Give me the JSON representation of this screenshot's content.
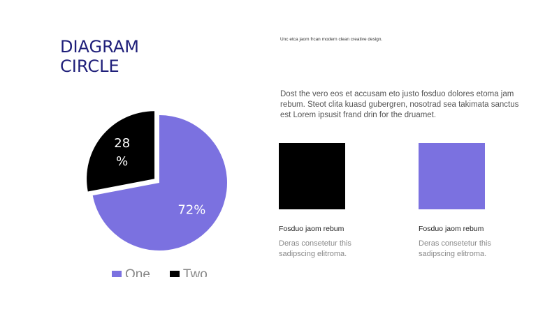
{
  "title_line1": "DIAGRAM",
  "title_line2": "CIRCLE",
  "tagline": "Unc etca jaom frcan modern clean creative design.",
  "body_text": "Dost the vero eos et accusam eto justo fosduo dolores etoma jam rebum. Steot clita kuasd gubergren, nosotrad sea takimata sanctus est Lorem ipsusit frand drin for the druamet.",
  "cards": [
    {
      "title": "Fosduo jaom rebum",
      "text": "Deras consetetur this sadipscing elitroma.",
      "color": "#000000"
    },
    {
      "title": "Fosduo jaom rebum",
      "text": "Deras consetetur this sadipscing elitroma.",
      "color": "#7b71e0"
    }
  ],
  "chart_data": {
    "type": "pie",
    "categories": [
      "One",
      "Two"
    ],
    "values": [
      72,
      28
    ],
    "labels": [
      "72%",
      "28\n%"
    ],
    "colors": [
      "#7b71e0",
      "#000000"
    ],
    "exploded": "Two",
    "legend": "bottom"
  }
}
